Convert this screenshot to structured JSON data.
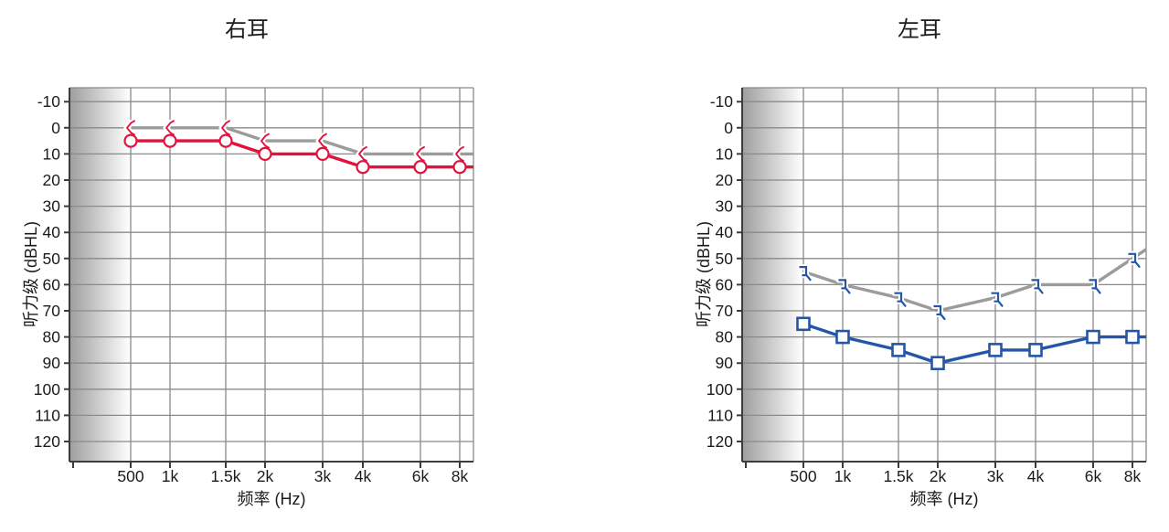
{
  "palette": {
    "background": "#ffffff",
    "red": "#e2123d",
    "blue": "#2456a8",
    "gray_series": "#9b9b9b",
    "grid": "#8a8a8a",
    "axis": "#3c3c3c",
    "text": "#1b1b1b",
    "gradient_dark": "#9e9e9e",
    "marker_fill": "#ffffff"
  },
  "chart_data": [
    {
      "type": "line",
      "title": "右耳",
      "xlabel": "频率 (Hz)",
      "ylabel": "听力级 (dBHL)",
      "categories": [
        "500",
        "1k",
        "1.5k",
        "2k",
        "3k",
        "4k",
        "6k",
        "8k"
      ],
      "y_ticks": [
        -10,
        0,
        10,
        20,
        30,
        40,
        50,
        60,
        70,
        80,
        90,
        100,
        110,
        120
      ],
      "ylim": [
        -10,
        120
      ],
      "y_inverted": true,
      "grid": true,
      "legend": "none",
      "shaded_band": "left-of-500Hz",
      "series": [
        {
          "name": "bone-conduction-gray-line",
          "color_key": "gray_series",
          "marker": "angle-left",
          "marker_color_key": "red",
          "values": [
            0,
            0,
            0,
            5,
            5,
            10,
            10,
            10
          ]
        },
        {
          "name": "air-conduction-red-line",
          "color_key": "red",
          "marker": "circle",
          "marker_color_key": "red",
          "values": [
            5,
            5,
            5,
            10,
            10,
            15,
            15,
            15
          ]
        }
      ]
    },
    {
      "type": "line",
      "title": "左耳",
      "xlabel": "频率 (Hz)",
      "ylabel": "听力级 (dBHL)",
      "categories": [
        "500",
        "1k",
        "1.5k",
        "2k",
        "3k",
        "4k",
        "6k",
        "8k"
      ],
      "y_ticks": [
        -10,
        0,
        10,
        20,
        30,
        40,
        50,
        60,
        70,
        80,
        90,
        100,
        110,
        120
      ],
      "ylim": [
        -10,
        120
      ],
      "y_inverted": true,
      "grid": true,
      "legend": "none",
      "shaded_band": "left-of-500Hz",
      "series": [
        {
          "name": "bone-conduction-gray-line",
          "color_key": "gray_series",
          "marker": "bracket-left-tail",
          "marker_color_key": "blue",
          "values": [
            55,
            60,
            65,
            70,
            65,
            60,
            60,
            50
          ]
        },
        {
          "name": "air-conduction-blue-line",
          "color_key": "blue",
          "marker": "square",
          "marker_color_key": "blue",
          "values": [
            75,
            80,
            85,
            90,
            85,
            85,
            80,
            80
          ]
        }
      ]
    }
  ]
}
